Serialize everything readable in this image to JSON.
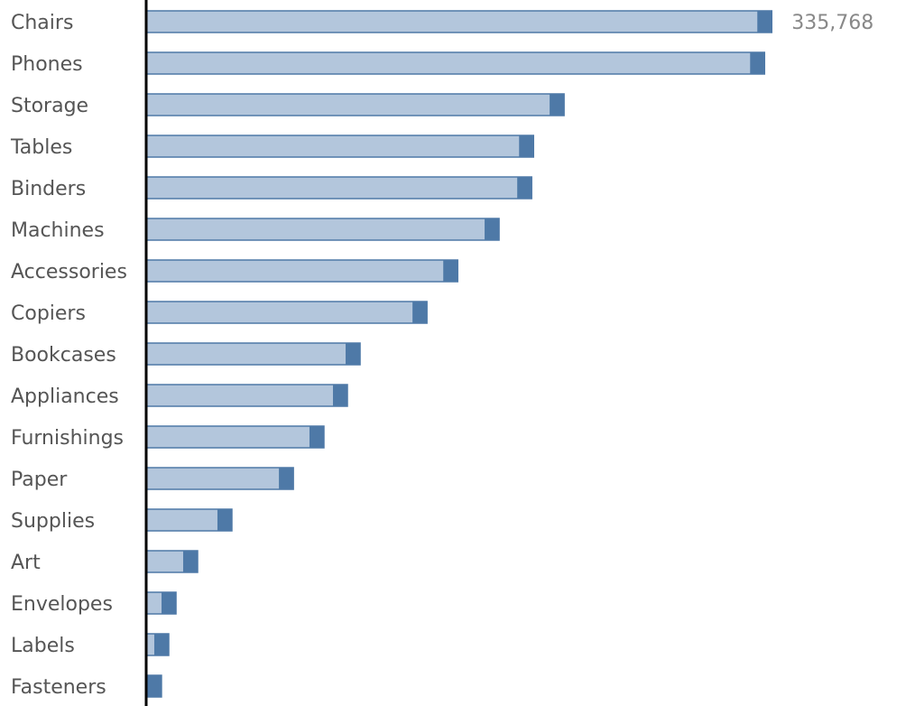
{
  "chart_data": {
    "type": "bar",
    "orientation": "horizontal",
    "categories": [
      "Chairs",
      "Phones",
      "Storage",
      "Tables",
      "Binders",
      "Machines",
      "Accessories",
      "Copiers",
      "Bookcases",
      "Appliances",
      "Furnishings",
      "Paper",
      "Supplies",
      "Art",
      "Envelopes",
      "Labels",
      "Fasteners"
    ],
    "values": [
      335768,
      331900,
      224300,
      207900,
      206900,
      189400,
      167200,
      150700,
      114800,
      108000,
      95400,
      79000,
      46000,
      27600,
      16000,
      12100,
      8200
    ],
    "value_labels": [
      "335,768",
      null,
      null,
      null,
      null,
      null,
      null,
      null,
      null,
      null,
      null,
      null,
      null,
      null,
      null,
      null,
      null
    ],
    "color": "#b3c6dc",
    "cap_color": "#4e79a7",
    "xlim": [
      0,
      340000
    ]
  }
}
